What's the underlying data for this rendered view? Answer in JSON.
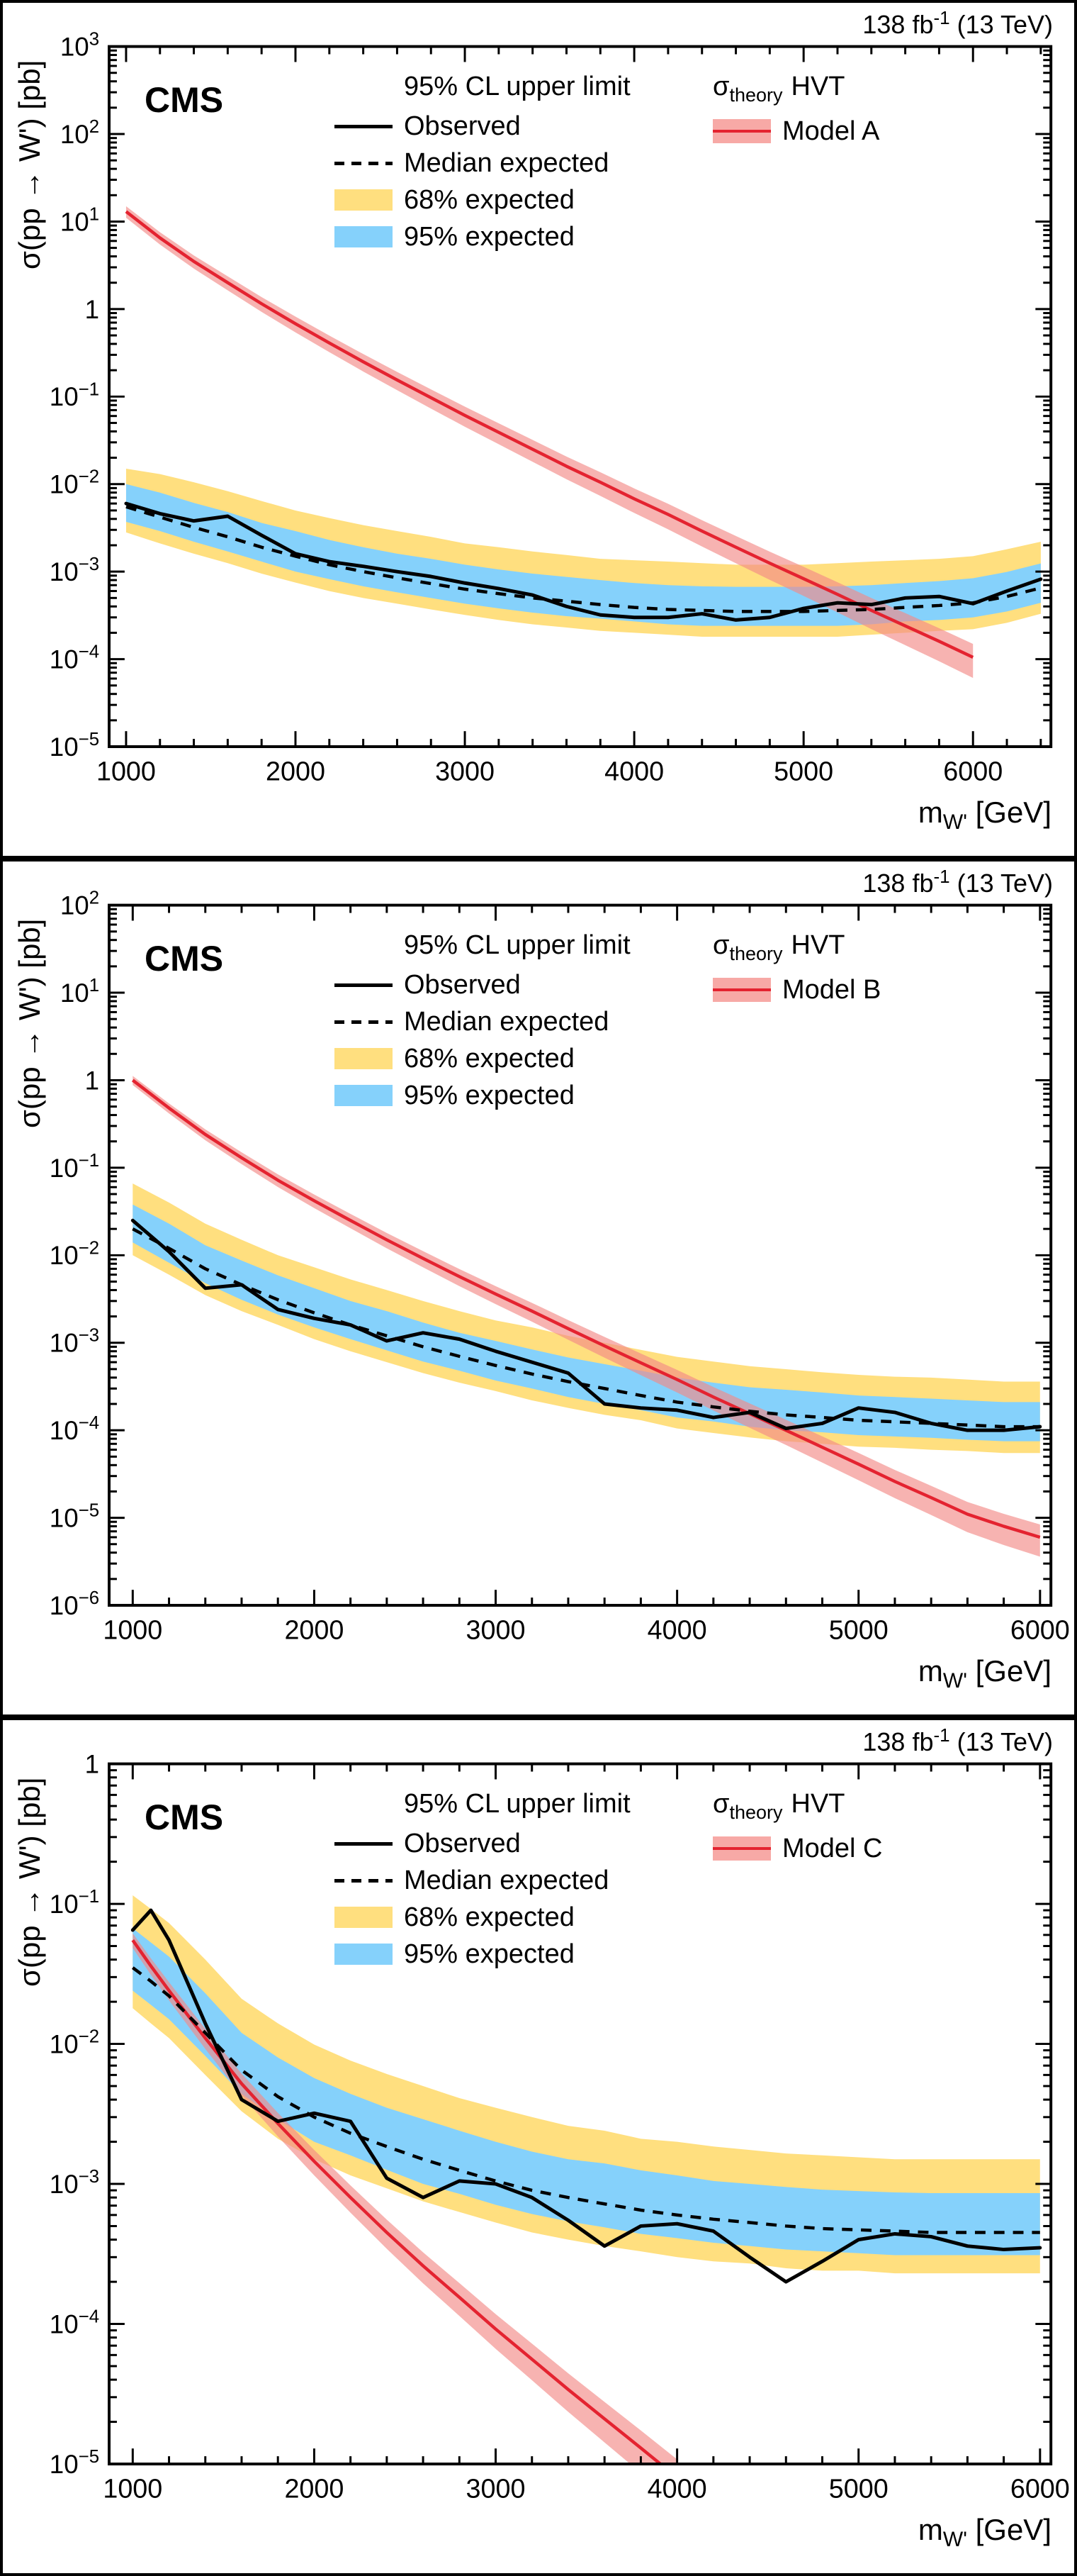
{
  "labels": {
    "cms": "CMS",
    "lumi_prefix": "138 fb",
    "lumi_sup": "-1",
    "lumi_suffix": " (13 TeV)",
    "legend_title": "95% CL upper limit",
    "observed": "Observed",
    "median": "Median expected",
    "b68": "68% expected",
    "b95": "95% expected",
    "sigma": "σ",
    "sigma_sub": "theory",
    "hvt": "HVT",
    "x_main": "m",
    "x_sub": "W'",
    "x_unit": " [GeV]",
    "ylabel": "σ(pp → W') [pb]"
  },
  "colors": {
    "band68": "#FFDF7F",
    "band95": "#85D1FB",
    "theory_line": "#E42330",
    "theory_band": "#F28B87",
    "observed": "#000000",
    "expected": "#000000"
  },
  "chart_data": [
    {
      "type": "line",
      "model": "Model A",
      "title": "95% CL upper limit",
      "lumi": "138 fb-1 (13 TeV)",
      "xlabel": "m_W' [GeV]",
      "ylabel": "σ(pp → W') [pb]",
      "xlim": [
        900,
        6460
      ],
      "xticks": [
        1000,
        2000,
        3000,
        4000,
        5000,
        6000
      ],
      "yexp": [
        -5,
        3
      ],
      "limits": {
        "x": [
          1000,
          1200,
          1400,
          1600,
          1800,
          2000,
          2200,
          2400,
          2600,
          2800,
          3000,
          3200,
          3400,
          3600,
          3800,
          4000,
          4200,
          4400,
          4600,
          4800,
          5000,
          5200,
          5400,
          5600,
          5800,
          6000,
          6200,
          6400
        ],
        "observed": [
          0.006,
          0.0046,
          0.0038,
          0.0043,
          0.0026,
          0.0016,
          0.0013,
          0.00115,
          0.001,
          0.00088,
          0.00074,
          0.00064,
          0.00054,
          0.0004,
          0.00032,
          0.0003,
          0.0003,
          0.00033,
          0.00028,
          0.0003,
          0.00038,
          0.00044,
          0.00042,
          0.0005,
          0.00052,
          0.00043,
          0.0006,
          0.00082
        ],
        "expected": [
          0.0055,
          0.0042,
          0.0032,
          0.0025,
          0.0019,
          0.0015,
          0.0012,
          0.001,
          0.00085,
          0.00073,
          0.00063,
          0.00056,
          0.0005,
          0.00046,
          0.00042,
          0.00039,
          0.00037,
          0.00036,
          0.00035,
          0.00035,
          0.00035,
          0.00036,
          0.00037,
          0.00039,
          0.00041,
          0.00044,
          0.00052,
          0.00065
        ],
        "b68hi": [
          0.015,
          0.013,
          0.0105,
          0.0083,
          0.0064,
          0.005,
          0.0041,
          0.0034,
          0.0029,
          0.0025,
          0.0021,
          0.0019,
          0.0017,
          0.00155,
          0.0014,
          0.00135,
          0.0013,
          0.00125,
          0.0012,
          0.0012,
          0.0012,
          0.00125,
          0.0013,
          0.00135,
          0.0014,
          0.0015,
          0.0018,
          0.0022
        ],
        "b68lo": [
          0.0028,
          0.0021,
          0.0016,
          0.00125,
          0.00095,
          0.00075,
          0.0006,
          0.0005,
          0.00043,
          0.00037,
          0.00032,
          0.00028,
          0.00025,
          0.00023,
          0.00021,
          0.0002,
          0.00019,
          0.00018,
          0.00018,
          0.00018,
          0.00018,
          0.00018,
          0.00019,
          0.0002,
          0.00021,
          0.00022,
          0.00026,
          0.00033
        ],
        "b95hi": [
          0.01,
          0.008,
          0.0061,
          0.0048,
          0.0036,
          0.0029,
          0.0023,
          0.0019,
          0.0016,
          0.0014,
          0.0012,
          0.00106,
          0.00095,
          0.00087,
          0.0008,
          0.00074,
          0.0007,
          0.00068,
          0.00067,
          0.00067,
          0.00067,
          0.00068,
          0.0007,
          0.00074,
          0.00078,
          0.00084,
          0.00099,
          0.00124
        ],
        "b95lo": [
          0.0037,
          0.0029,
          0.0022,
          0.0017,
          0.0013,
          0.001,
          0.00082,
          0.00068,
          0.00058,
          0.0005,
          0.00043,
          0.00038,
          0.00034,
          0.00031,
          0.00029,
          0.00027,
          0.00025,
          0.00024,
          0.00024,
          0.00024,
          0.00024,
          0.00024,
          0.00025,
          0.00027,
          0.00028,
          0.0003,
          0.00035,
          0.00044
        ]
      },
      "theory": {
        "x": [
          1000,
          1200,
          1400,
          1600,
          1800,
          2000,
          2200,
          2400,
          2600,
          2800,
          3000,
          3200,
          3400,
          3600,
          3800,
          4000,
          4200,
          4400,
          4600,
          4800,
          5000,
          5200,
          5400,
          5600,
          5800,
          6000
        ],
        "y": [
          13,
          6.5,
          3.5,
          2.0,
          1.15,
          0.68,
          0.41,
          0.25,
          0.155,
          0.097,
          0.061,
          0.039,
          0.025,
          0.016,
          0.0105,
          0.0068,
          0.0045,
          0.0029,
          0.0019,
          0.00125,
          0.00083,
          0.00055,
          0.00036,
          0.00024,
          0.00016,
          0.000105
        ],
        "band_frac": [
          0.15,
          0.42
        ]
      }
    },
    {
      "type": "line",
      "model": "Model B",
      "title": "95% CL upper limit",
      "lumi": "138 fb-1 (13 TeV)",
      "xlabel": "m_W' [GeV]",
      "ylabel": "σ(pp → W') [pb]",
      "xlim": [
        870,
        6060
      ],
      "xticks": [
        1000,
        2000,
        3000,
        4000,
        5000,
        6000
      ],
      "yexp": [
        -6,
        2
      ],
      "limits": {
        "x": [
          1000,
          1200,
          1400,
          1600,
          1800,
          2000,
          2200,
          2400,
          2600,
          2800,
          3000,
          3200,
          3400,
          3600,
          3800,
          4000,
          4200,
          4400,
          4600,
          4800,
          5000,
          5200,
          5400,
          5600,
          5800,
          6000
        ],
        "observed": [
          0.025,
          0.011,
          0.0042,
          0.0046,
          0.0024,
          0.0019,
          0.0016,
          0.00105,
          0.0013,
          0.0011,
          0.0008,
          0.0006,
          0.00045,
          0.0002,
          0.00018,
          0.00017,
          0.00014,
          0.00016,
          0.000105,
          0.00012,
          0.00018,
          0.00016,
          0.00012,
          0.0001,
          0.0001,
          0.00011
        ],
        "expected": [
          0.02,
          0.012,
          0.007,
          0.0046,
          0.0031,
          0.0022,
          0.0016,
          0.0012,
          0.0009,
          0.0007,
          0.00055,
          0.00044,
          0.00036,
          0.0003,
          0.00025,
          0.00021,
          0.000185,
          0.000165,
          0.00015,
          0.00014,
          0.00013,
          0.000125,
          0.00012,
          0.000115,
          0.00011,
          0.00011
        ],
        "b68hi": [
          0.066,
          0.04,
          0.023,
          0.015,
          0.01,
          0.0073,
          0.0053,
          0.004,
          0.003,
          0.0023,
          0.0018,
          0.0015,
          0.0012,
          0.001,
          0.00083,
          0.00069,
          0.00061,
          0.00054,
          0.0005,
          0.00046,
          0.00043,
          0.00041,
          0.0004,
          0.00038,
          0.00036,
          0.00036
        ],
        "b68lo": [
          0.01,
          0.006,
          0.0035,
          0.0023,
          0.0016,
          0.0011,
          0.0008,
          0.0006,
          0.00045,
          0.00035,
          0.00028,
          0.00022,
          0.00018,
          0.00015,
          0.00013,
          0.000105,
          9.3e-05,
          8.3e-05,
          7.5e-05,
          7e-05,
          6.5e-05,
          6.3e-05,
          6e-05,
          5.8e-05,
          5.5e-05,
          5.5e-05
        ],
        "b95hi": [
          0.038,
          0.023,
          0.013,
          0.0087,
          0.0059,
          0.0042,
          0.003,
          0.0023,
          0.0017,
          0.0013,
          0.00105,
          0.00084,
          0.00068,
          0.00057,
          0.00048,
          0.0004,
          0.00035,
          0.00031,
          0.00029,
          0.00027,
          0.00025,
          0.00024,
          0.00023,
          0.00022,
          0.00021,
          0.00021
        ],
        "b95lo": [
          0.014,
          0.0082,
          0.0048,
          0.0031,
          0.0021,
          0.0015,
          0.0011,
          0.00082,
          0.00061,
          0.00048,
          0.00037,
          0.0003,
          0.00024,
          0.0002,
          0.00017,
          0.00014,
          0.000126,
          0.00011,
          0.0001,
          9.5e-05,
          8.8e-05,
          8.5e-05,
          8.2e-05,
          7.8e-05,
          7.5e-05,
          7.5e-05
        ]
      },
      "theory": {
        "x": [
          1000,
          1200,
          1400,
          1600,
          1800,
          2000,
          2200,
          2400,
          2600,
          2800,
          3000,
          3200,
          3400,
          3600,
          3800,
          4000,
          4200,
          4400,
          4600,
          4800,
          5000,
          5200,
          5400,
          5600,
          5800,
          6000
        ],
        "y": [
          1.0,
          0.48,
          0.24,
          0.13,
          0.072,
          0.042,
          0.025,
          0.015,
          0.0092,
          0.0057,
          0.0036,
          0.0023,
          0.00145,
          0.00092,
          0.00059,
          0.00038,
          0.00024,
          0.000155,
          0.0001,
          6.4e-05,
          4.1e-05,
          2.6e-05,
          1.7e-05,
          1.1e-05,
          8e-06,
          6e-06
        ],
        "band_frac": [
          0.12,
          0.4
        ]
      }
    },
    {
      "type": "line",
      "model": "Model C",
      "title": "95% CL upper limit",
      "lumi": "138 fb-1 (13 TeV)",
      "xlabel": "m_W' [GeV]",
      "ylabel": "σ(pp → W') [pb]",
      "xlim": [
        870,
        6060
      ],
      "xticks": [
        1000,
        2000,
        3000,
        4000,
        5000,
        6000
      ],
      "yexp": [
        -5,
        0
      ],
      "limits": {
        "x": [
          1000,
          1100,
          1200,
          1400,
          1600,
          1800,
          2000,
          2200,
          2400,
          2600,
          2800,
          3000,
          3200,
          3400,
          3600,
          3800,
          4000,
          4200,
          4400,
          4600,
          4800,
          5000,
          5200,
          5400,
          5600,
          5800,
          6000
        ],
        "observed": [
          0.065,
          0.09,
          0.055,
          0.014,
          0.004,
          0.0028,
          0.0032,
          0.0028,
          0.0011,
          0.0008,
          0.00105,
          0.001,
          0.0008,
          0.00055,
          0.00036,
          0.0005,
          0.00052,
          0.00046,
          0.0003,
          0.0002,
          0.00028,
          0.0004,
          0.00044,
          0.00042,
          0.00036,
          0.00034,
          0.00035
        ],
        "expected": [
          0.035,
          0.028,
          0.022,
          0.012,
          0.0065,
          0.0042,
          0.003,
          0.0023,
          0.00185,
          0.0015,
          0.00125,
          0.00105,
          0.0009,
          0.0008,
          0.00072,
          0.00065,
          0.0006,
          0.00056,
          0.00053,
          0.0005,
          0.00048,
          0.00047,
          0.00046,
          0.00045,
          0.00045,
          0.00045,
          0.00045
        ],
        "b68hi": [
          0.115,
          0.092,
          0.073,
          0.04,
          0.021,
          0.014,
          0.0099,
          0.0076,
          0.0061,
          0.005,
          0.0041,
          0.0035,
          0.003,
          0.0026,
          0.0024,
          0.0021,
          0.002,
          0.00185,
          0.00175,
          0.00165,
          0.0016,
          0.00155,
          0.0015,
          0.0015,
          0.0015,
          0.0015,
          0.0015
        ],
        "b68lo": [
          0.018,
          0.014,
          0.011,
          0.006,
          0.0033,
          0.0021,
          0.0015,
          0.00115,
          0.00093,
          0.00075,
          0.00063,
          0.00053,
          0.00045,
          0.0004,
          0.00036,
          0.00033,
          0.0003,
          0.00028,
          0.00027,
          0.00025,
          0.00024,
          0.00024,
          0.00023,
          0.00023,
          0.00023,
          0.00023,
          0.00023
        ],
        "b95hi": [
          0.067,
          0.053,
          0.042,
          0.023,
          0.012,
          0.008,
          0.0057,
          0.0044,
          0.0035,
          0.0029,
          0.0024,
          0.002,
          0.0017,
          0.0015,
          0.0014,
          0.00125,
          0.00115,
          0.00105,
          0.001,
          0.00095,
          0.00091,
          0.00089,
          0.00087,
          0.00086,
          0.00086,
          0.00086,
          0.00086
        ],
        "b95lo": [
          0.024,
          0.019,
          0.015,
          0.0082,
          0.0044,
          0.0029,
          0.002,
          0.0016,
          0.00126,
          0.001,
          0.00085,
          0.00071,
          0.00061,
          0.00054,
          0.00049,
          0.00044,
          0.00041,
          0.00038,
          0.00036,
          0.00034,
          0.00033,
          0.00032,
          0.00031,
          0.00031,
          0.00031,
          0.00031,
          0.00031
        ]
      },
      "theory": {
        "x": [
          1000,
          1100,
          1200,
          1400,
          1600,
          1800,
          2000,
          2200,
          2400,
          2600,
          2800,
          3000,
          3200,
          3400,
          3600,
          3800,
          4000
        ],
        "y": [
          0.055,
          0.036,
          0.024,
          0.011,
          0.0052,
          0.0027,
          0.00145,
          0.0008,
          0.00045,
          0.00026,
          0.000155,
          9.2e-05,
          5.6e-05,
          3.4e-05,
          2.1e-05,
          1.3e-05,
          8e-06
        ],
        "band_frac": [
          0.12,
          0.35
        ]
      }
    }
  ]
}
